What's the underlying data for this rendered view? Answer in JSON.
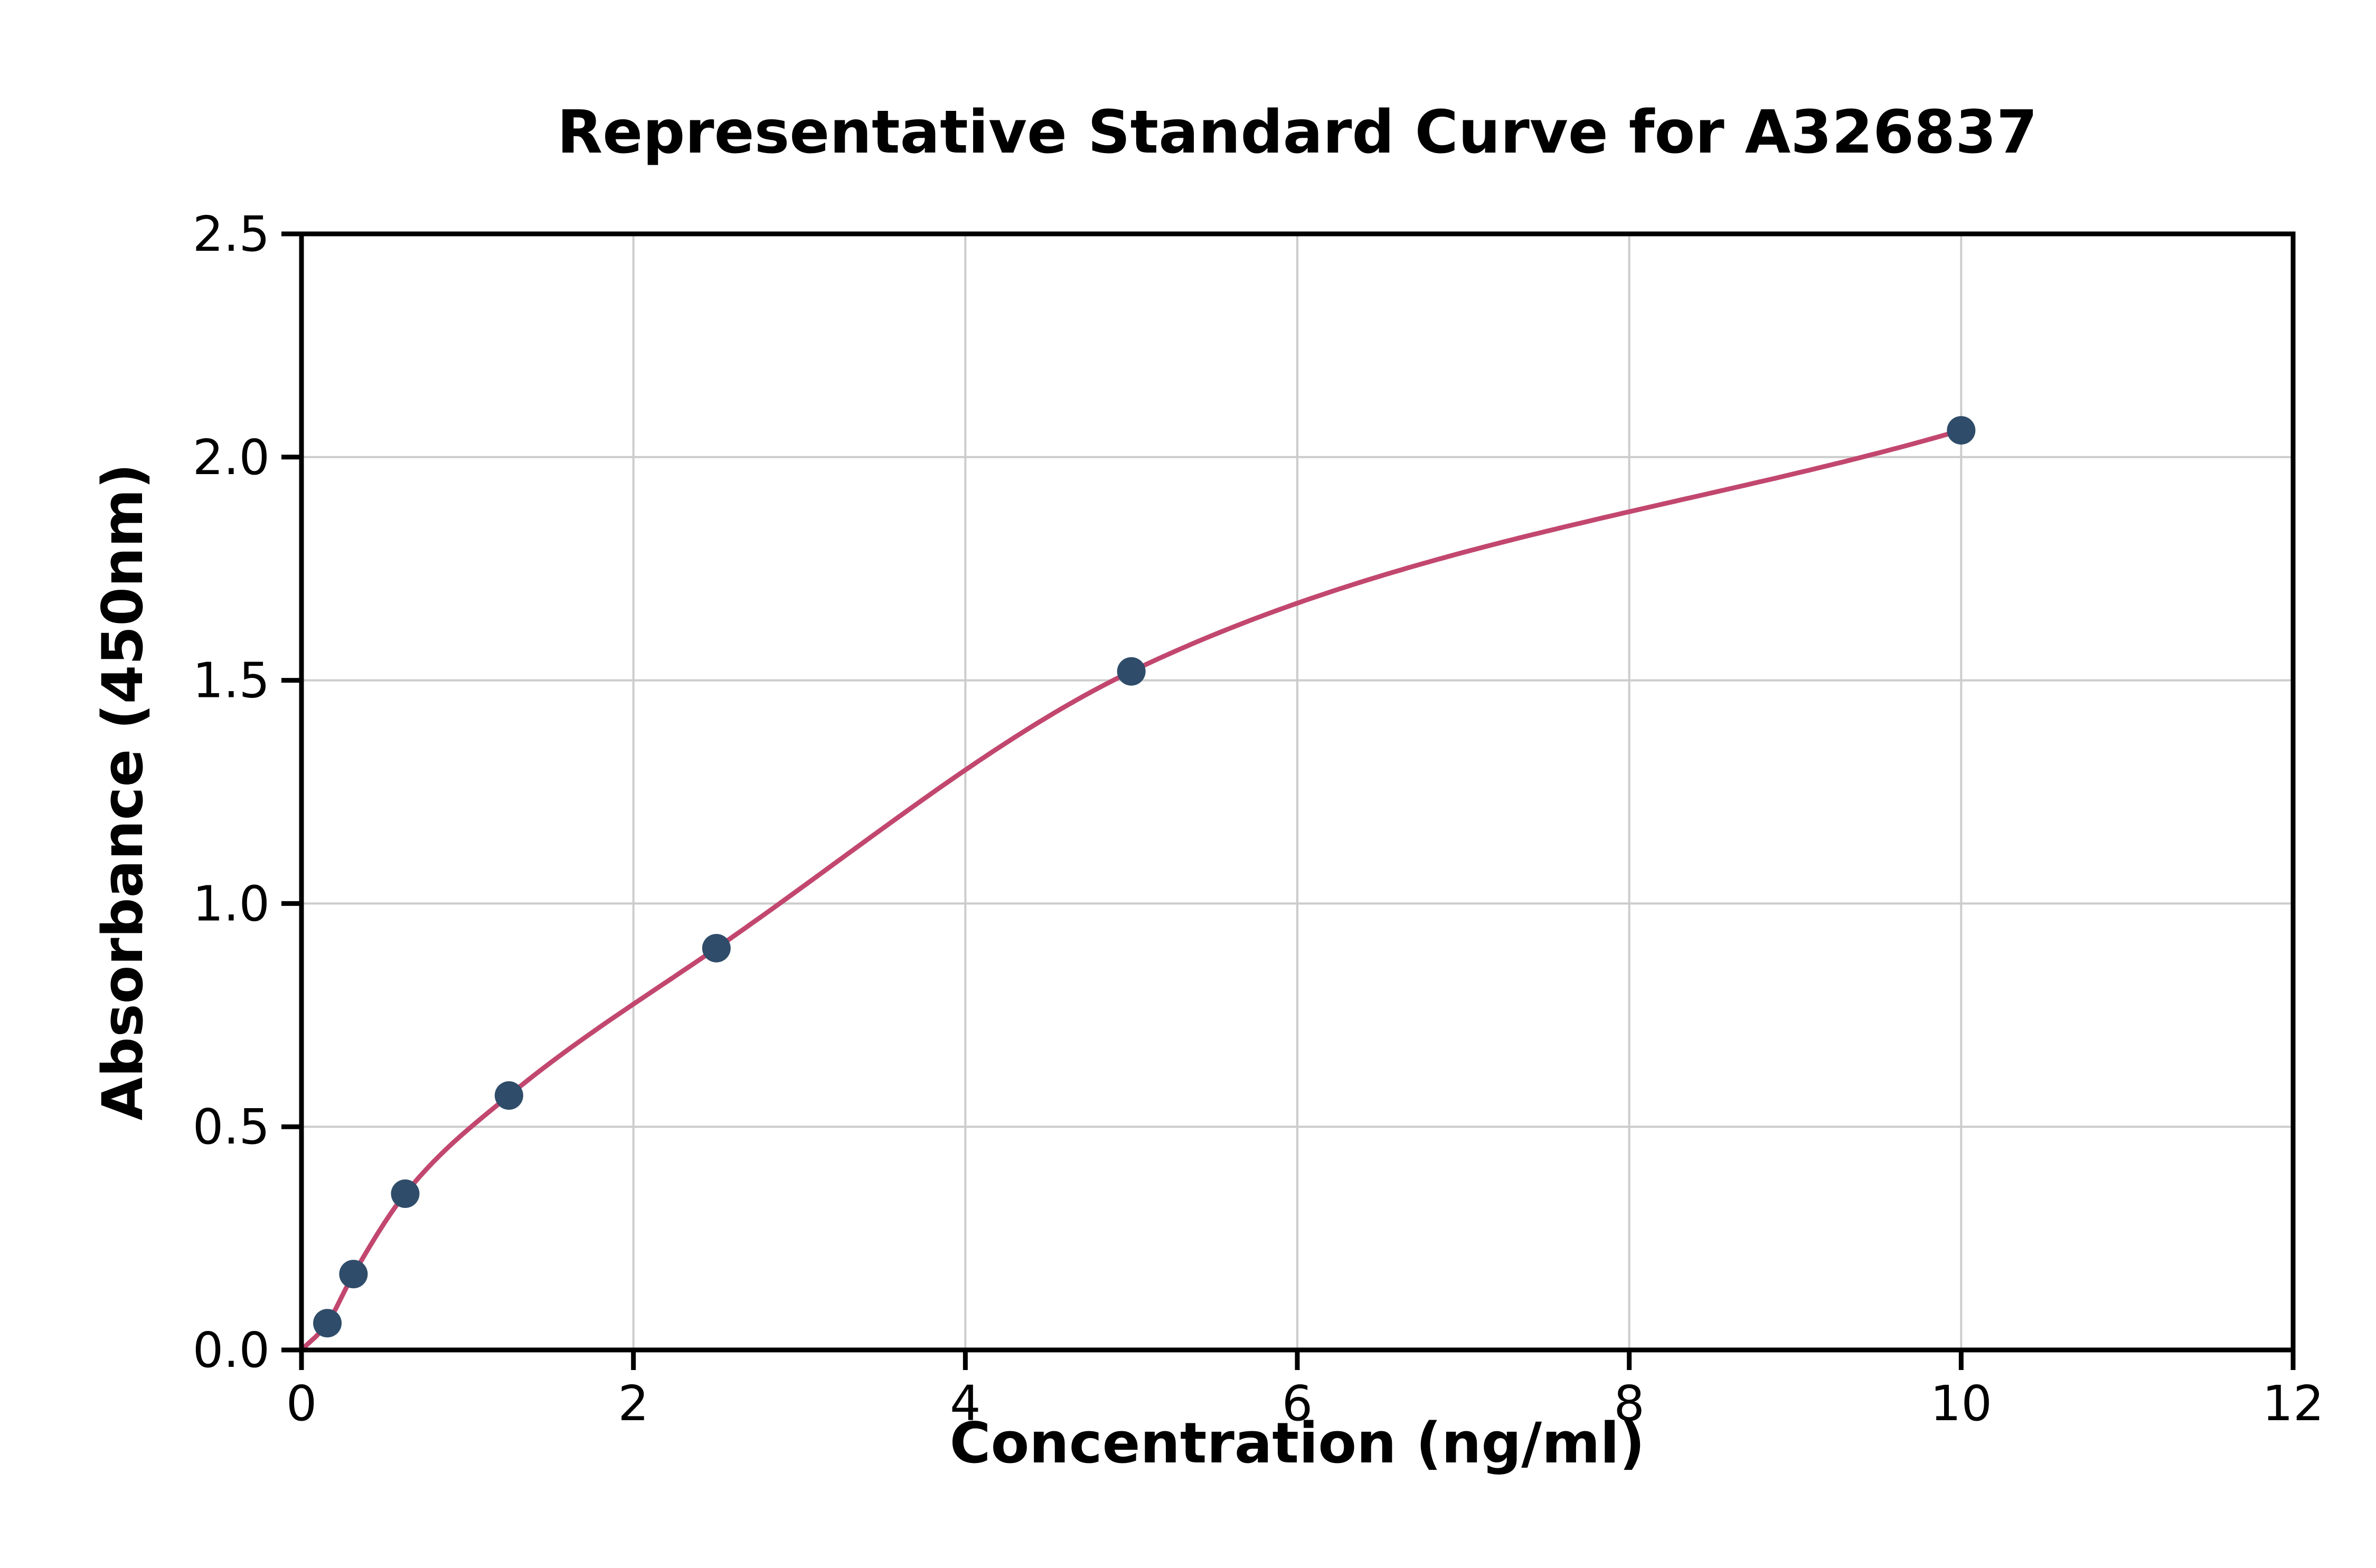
{
  "chart_data": {
    "type": "scatter",
    "title": "Representative Standard Curve for A326837",
    "xlabel": "Concentration (ng/ml)",
    "ylabel": "Absorbance (450nm)",
    "xlim": [
      0,
      12
    ],
    "ylim": [
      0,
      2.5
    ],
    "x_ticks": [
      0,
      2,
      4,
      6,
      8,
      10,
      12
    ],
    "x_tick_labels": [
      "0",
      "2",
      "4",
      "6",
      "8",
      "10",
      "12"
    ],
    "y_ticks": [
      0,
      0.5,
      1,
      1.5,
      2,
      2.5
    ],
    "y_tick_labels": [
      "0.0",
      "0.5",
      "1.0",
      "1.5",
      "2.0",
      "2.5"
    ],
    "grid": true,
    "legend": "none",
    "series": [
      {
        "name": "standard-points",
        "type": "scatter",
        "x": [
          0.156,
          0.313,
          0.625,
          1.25,
          2.5,
          5,
          10
        ],
        "y": [
          0.06,
          0.17,
          0.35,
          0.57,
          0.9,
          1.52,
          2.06
        ],
        "color": "#2f4d6a"
      },
      {
        "name": "fitted-curve",
        "type": "line",
        "x": [
          0,
          0.156,
          0.313,
          0.625,
          1.25,
          2.5,
          5,
          10
        ],
        "y": [
          0,
          0.06,
          0.17,
          0.35,
          0.57,
          0.9,
          1.52,
          2.06
        ],
        "color": "#c2476f"
      }
    ],
    "colors": {
      "grid": "#cccccc",
      "axis": "#000000",
      "background": "#ffffff"
    }
  }
}
